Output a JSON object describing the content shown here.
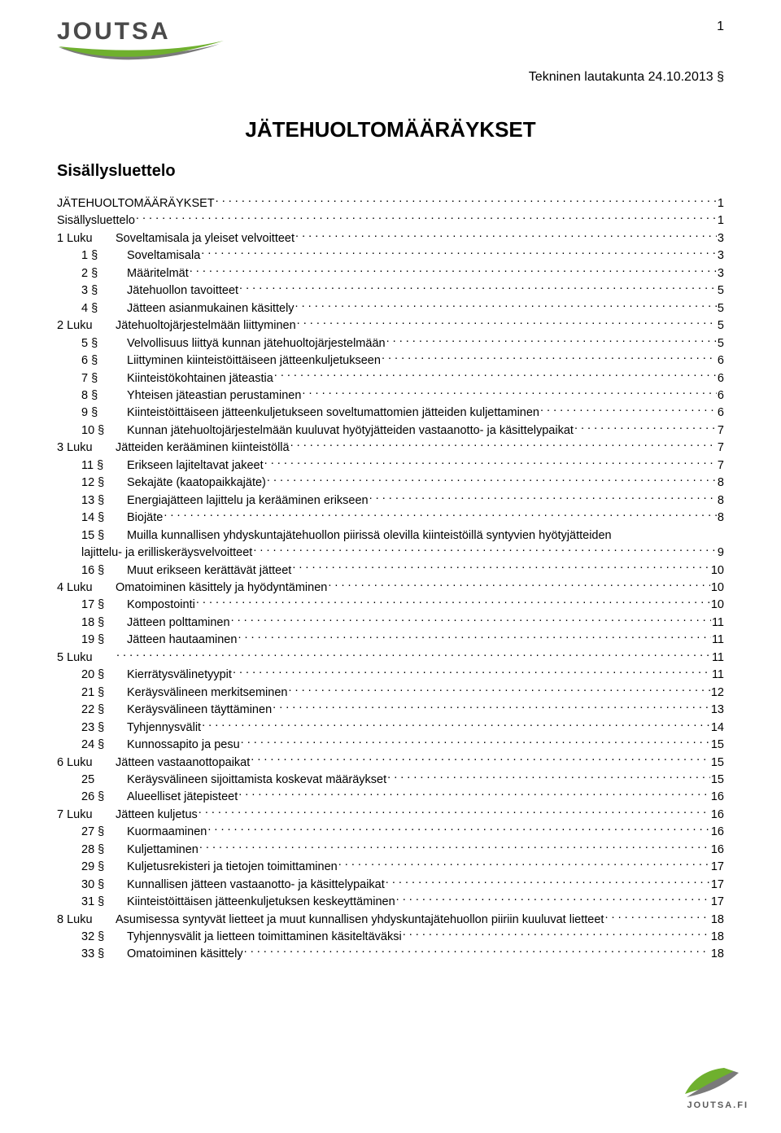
{
  "header": {
    "logo_text": "JOUTSA",
    "page_number": "1",
    "meta_line": "Tekninen lautakunta 24.10.2013 §",
    "colors": {
      "logo_grey": "#4a4a4a",
      "swoosh_green": "#6fb02e",
      "swoosh_grey": "#7a7a7a"
    }
  },
  "title": "JÄTEHUOLTOMÄÄRÄYKSET",
  "subtitle": "Sisällysluettelo",
  "toc_font_size": 14.5,
  "toc": [
    {
      "indent": 0,
      "label": "",
      "text": "JÄTEHUOLTOMÄÄRÄYKSET",
      "page": "1"
    },
    {
      "indent": 0,
      "label": "",
      "text": "Sisällysluettelo",
      "page": "1"
    },
    {
      "indent": 1,
      "label": "1 Luku",
      "text": "Soveltamisala ja yleiset velvoitteet",
      "page": "3"
    },
    {
      "indent": 2,
      "label": "1 §",
      "text": "Soveltamisala",
      "page": "3"
    },
    {
      "indent": 2,
      "label": "2 §",
      "text": "Määritelmät",
      "page": "3"
    },
    {
      "indent": 2,
      "label": "3 §",
      "text": "Jätehuollon tavoitteet",
      "page": "5"
    },
    {
      "indent": 2,
      "label": "4 §",
      "text": "Jätteen asianmukainen käsittely",
      "page": "5"
    },
    {
      "indent": 1,
      "label": "2 Luku",
      "text": "Jätehuoltojärjestelmään liittyminen",
      "page": "5"
    },
    {
      "indent": 2,
      "label": "5 §",
      "text": "Velvollisuus liittyä kunnan jätehuoltojärjestelmään",
      "page": "5"
    },
    {
      "indent": 2,
      "label": "6 §",
      "text": "Liittyminen kiinteistöittäiseen jätteenkuljetukseen",
      "page": "6"
    },
    {
      "indent": 2,
      "label": "7 §",
      "text": "Kiinteistökohtainen jäteastia",
      "page": "6"
    },
    {
      "indent": 2,
      "label": "8 §",
      "text": "Yhteisen jäteastian perustaminen",
      "page": "6"
    },
    {
      "indent": 2,
      "label": "9 §",
      "text": "Kiinteistöittäiseen jätteenkuljetukseen soveltumattomien jätteiden kuljettaminen",
      "page": "6"
    },
    {
      "indent": 2,
      "label": "10 §",
      "text": "Kunnan jätehuoltojärjestelmään kuuluvat hyötyjätteiden vastaanotto- ja  käsittelypaikat",
      "page": "7"
    },
    {
      "indent": 1,
      "label": "3 Luku",
      "text": "Jätteiden kerääminen kiinteistöllä",
      "page": "7"
    },
    {
      "indent": 2,
      "label": "11 §",
      "text": "Erikseen lajiteltavat jakeet",
      "page": "7"
    },
    {
      "indent": 2,
      "label": "12 §",
      "text": "Sekajäte (kaatopaikkajäte)",
      "page": "8"
    },
    {
      "indent": 2,
      "label": "13 §",
      "text": "Energiajätteen lajittelu ja kerääminen erikseen",
      "page": "8"
    },
    {
      "indent": 2,
      "label": "14 §",
      "text": "Biojäte",
      "page": "8"
    },
    {
      "indent": 2,
      "label": "15 §",
      "text": "Muilla kunnallisen yhdyskuntajätehuollon piirissä olevilla kiinteistöillä syntyvien hyötyjätteiden",
      "page": "",
      "nodots": true
    },
    {
      "indent": "2w",
      "label": "",
      "text": "lajittelu- ja erilliskeräysvelvoitteet",
      "page": "9"
    },
    {
      "indent": 2,
      "label": "16 §",
      "text": "Muut erikseen kerättävät jätteet",
      "page": "10"
    },
    {
      "indent": 1,
      "label": "4 Luku",
      "text": "Omatoiminen käsittely ja hyödyntäminen",
      "page": "10"
    },
    {
      "indent": 2,
      "label": "17 §",
      "text": "Kompostointi",
      "page": "10"
    },
    {
      "indent": 2,
      "label": "18 §",
      "text": "Jätteen polttaminen",
      "page": "11"
    },
    {
      "indent": 2,
      "label": "19 §",
      "text": "Jätteen hautaaminen",
      "page": "11"
    },
    {
      "indent": 1,
      "label": "5 Luku",
      "text": "",
      "page": "11"
    },
    {
      "indent": 2,
      "label": "20 §",
      "text": "Kierrätysvälinetyypit",
      "page": "11"
    },
    {
      "indent": 2,
      "label": "21 §",
      "text": "Keräysvälineen merkitseminen",
      "page": "12"
    },
    {
      "indent": 2,
      "label": "22 §",
      "text": "Keräysvälineen täyttäminen",
      "page": "13"
    },
    {
      "indent": 2,
      "label": "23 §",
      "text": "Tyhjennysvälit",
      "page": "14"
    },
    {
      "indent": 2,
      "label": "24 §",
      "text": "Kunnossapito ja pesu",
      "page": "15"
    },
    {
      "indent": 1,
      "label": "6 Luku",
      "text": "Jätteen vastaanottopaikat",
      "page": "15"
    },
    {
      "indent": 2,
      "label": "25",
      "text": "Keräysvälineen sijoittamista koskevat määräykset",
      "page": "15"
    },
    {
      "indent": 2,
      "label": "26 §",
      "text": "Alueelliset jätepisteet",
      "page": "16"
    },
    {
      "indent": 1,
      "label": "7 Luku",
      "text": "Jätteen kuljetus",
      "page": "16"
    },
    {
      "indent": 2,
      "label": "27 §",
      "text": "Kuormaaminen",
      "page": "16"
    },
    {
      "indent": 2,
      "label": "28 §",
      "text": "Kuljettaminen",
      "page": "16"
    },
    {
      "indent": 2,
      "label": "29 §",
      "text": "Kuljetusrekisteri ja tietojen toimittaminen",
      "page": "17"
    },
    {
      "indent": 2,
      "label": "30 §",
      "text": "Kunnallisen jätteen vastaanotto- ja käsittelypaikat",
      "page": "17"
    },
    {
      "indent": 2,
      "label": "31 §",
      "text": "Kiinteistöittäisen jätteenkuljetuksen keskeyttäminen",
      "page": "17"
    },
    {
      "indent": 1,
      "label": "8 Luku",
      "text": "Asumisessa syntyvät lietteet ja muut kunnallisen yhdyskuntajätehuollon piiriin kuuluvat lietteet",
      "page": "18"
    },
    {
      "indent": 2,
      "label": "32 §",
      "text": "Tyhjennysvälit ja lietteen toimittaminen käsiteltäväksi",
      "page": "18"
    },
    {
      "indent": 2,
      "label": "33 §",
      "text": "Omatoiminen käsittely",
      "page": "18"
    }
  ],
  "footer": {
    "text": "JOUTSA.FI",
    "leaf_green": "#6fb02e",
    "leaf_grey": "#7a7a7a"
  }
}
